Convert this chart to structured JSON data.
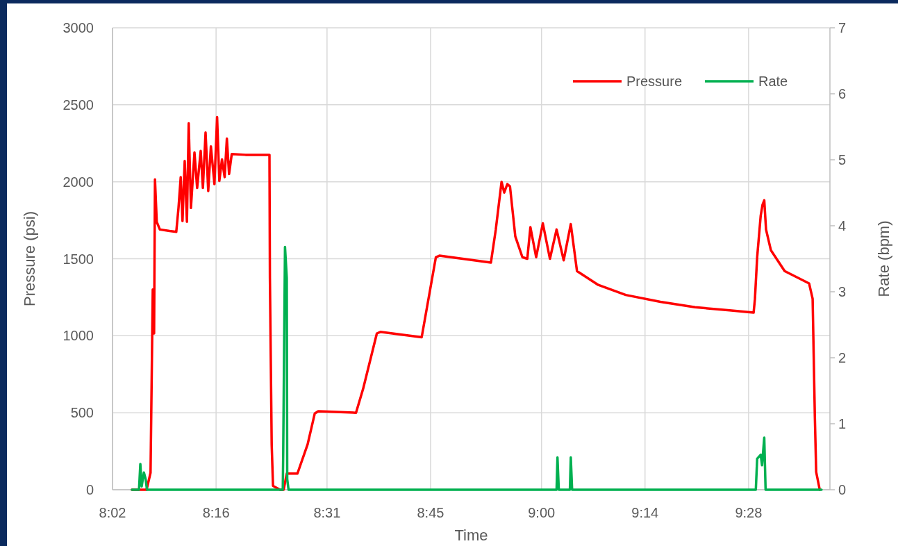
{
  "chart_data": {
    "type": "line",
    "xlabel": "Time",
    "ylabel": "Pressure (psi)",
    "y2label": "Rate (bpm)",
    "xlim": [
      8.0333,
      9.65
    ],
    "xticks": [
      {
        "value": 8.0333,
        "label": "8:02"
      },
      {
        "value": 8.2667,
        "label": "8:16"
      },
      {
        "value": 8.5167,
        "label": "8:31"
      },
      {
        "value": 8.75,
        "label": "8:45"
      },
      {
        "value": 9.0,
        "label": "9:00"
      },
      {
        "value": 9.2333,
        "label": "9:14"
      },
      {
        "value": 9.4667,
        "label": "9:28"
      }
    ],
    "ylim": [
      0,
      3000
    ],
    "yticks": [
      0,
      500,
      1000,
      1500,
      2000,
      2500,
      3000
    ],
    "y2lim": [
      0,
      7
    ],
    "y2ticks": [
      0,
      1,
      2,
      3,
      4,
      5,
      6,
      7
    ],
    "grid": true,
    "legend": "top right",
    "series": [
      {
        "name": "Pressure",
        "color": "#ff0000",
        "x": [
          8.077,
          8.11,
          8.119,
          8.123,
          8.124,
          8.127,
          8.129,
          8.133,
          8.14,
          8.162,
          8.177,
          8.182,
          8.187,
          8.191,
          8.196,
          8.201,
          8.205,
          8.21,
          8.218,
          8.224,
          8.232,
          8.237,
          8.243,
          8.249,
          8.255,
          8.263,
          8.269,
          8.274,
          8.28,
          8.286,
          8.291,
          8.296,
          8.302,
          8.333,
          8.387,
          8.388,
          8.392,
          8.395,
          8.411,
          8.419,
          8.426,
          8.45,
          8.473,
          8.489,
          8.497,
          8.582,
          8.598,
          8.629,
          8.637,
          8.73,
          8.762,
          8.77,
          8.886,
          8.897,
          8.91,
          8.916,
          8.923,
          8.929,
          8.941,
          8.957,
          8.968,
          8.975,
          8.988,
          9.003,
          9.019,
          9.034,
          9.05,
          9.066,
          9.08,
          9.128,
          9.19,
          9.268,
          9.346,
          9.424,
          9.478,
          9.481,
          9.486,
          9.494,
          9.498,
          9.502,
          9.506,
          9.517,
          9.548,
          9.603,
          9.611,
          9.616,
          9.619,
          9.627
        ],
        "values": [
          0,
          0,
          110,
          1060,
          1300,
          1015,
          2015,
          1740,
          1690,
          1680,
          1675,
          1830,
          2030,
          1745,
          2135,
          1740,
          2380,
          1830,
          2190,
          1960,
          2200,
          1960,
          2320,
          1940,
          2230,
          1985,
          2420,
          2005,
          2145,
          2030,
          2280,
          2050,
          2180,
          2175,
          2175,
          1375,
          295,
          25,
          0,
          0,
          105,
          105,
          295,
          495,
          510,
          500,
          655,
          1015,
          1025,
          990,
          1510,
          1520,
          1475,
          1690,
          2000,
          1930,
          1985,
          1970,
          1645,
          1510,
          1500,
          1705,
          1510,
          1730,
          1500,
          1690,
          1490,
          1725,
          1420,
          1330,
          1265,
          1220,
          1185,
          1165,
          1150,
          1240,
          1510,
          1780,
          1850,
          1880,
          1690,
          1555,
          1420,
          1340,
          1240,
          475,
          115,
          0
        ]
      },
      {
        "name": "Rate",
        "color": "#00b050",
        "axis": "y2",
        "x": [
          8.077,
          8.093,
          8.096,
          8.099,
          8.104,
          8.108,
          8.111,
          8.417,
          8.418,
          8.422,
          8.426,
          8.427,
          8.43,
          9.034,
          9.036,
          9.039,
          9.064,
          9.066,
          9.069,
          9.483,
          9.486,
          9.494,
          9.497,
          9.502,
          9.505,
          9.631
        ],
        "values": [
          0,
          0,
          0.39,
          0.05,
          0.26,
          0.16,
          0,
          0,
          0.58,
          3.68,
          3.21,
          0.16,
          0,
          0,
          0.49,
          0,
          0,
          0.49,
          0,
          0,
          0.47,
          0.53,
          0.37,
          0.79,
          0,
          0
        ]
      }
    ]
  }
}
